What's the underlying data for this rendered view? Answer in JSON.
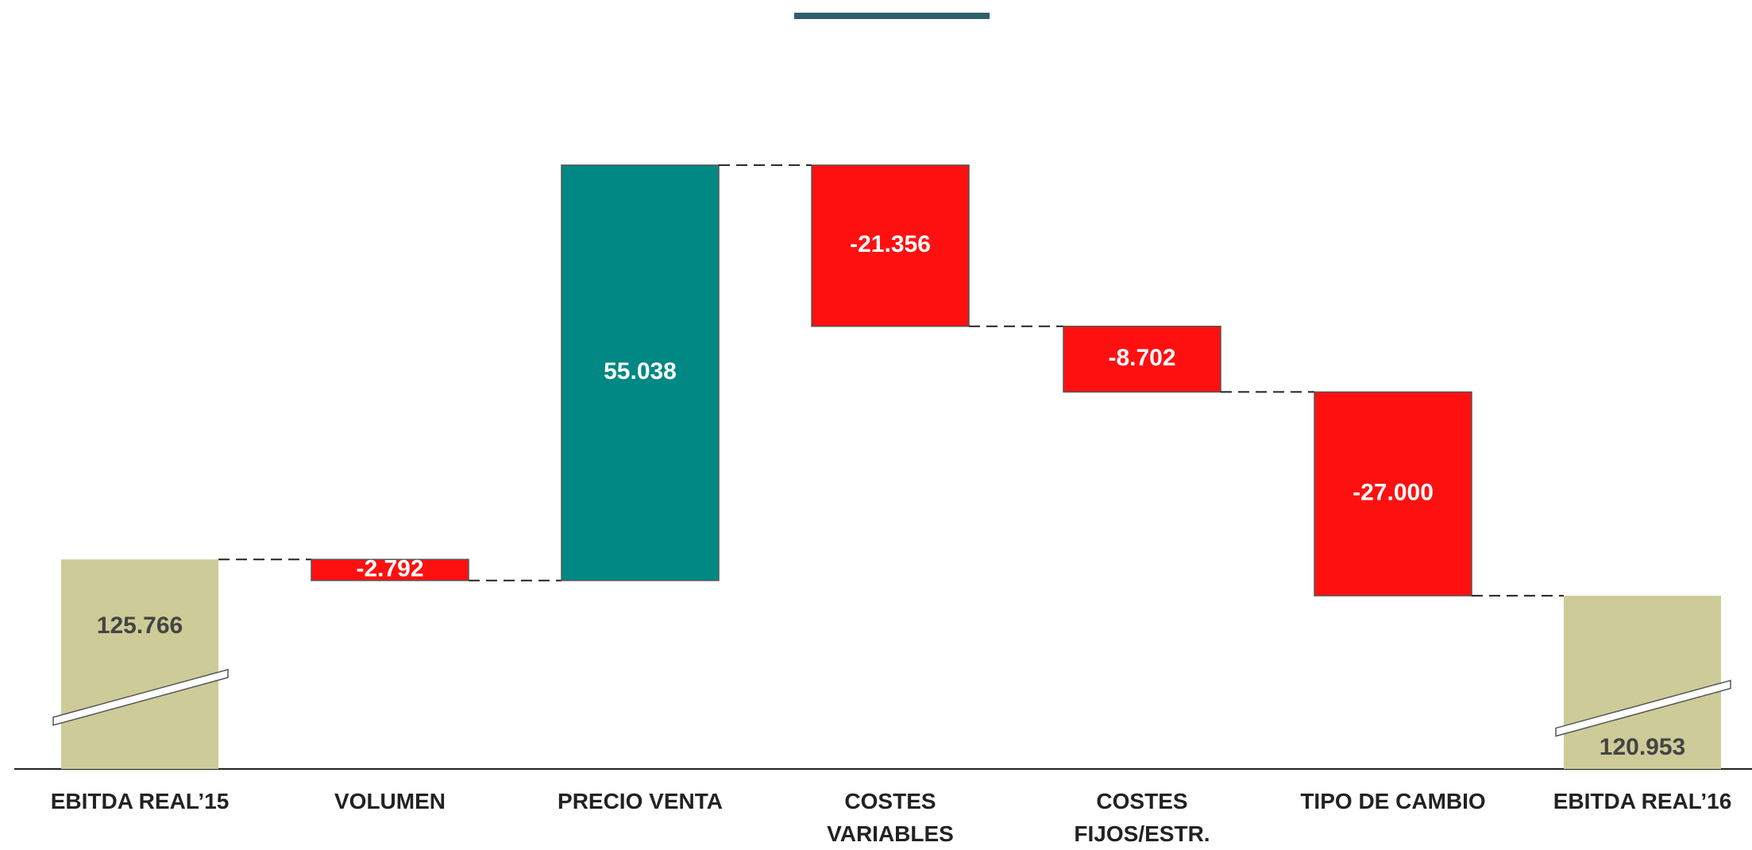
{
  "chart_data": {
    "type": "waterfall",
    "categories": [
      "EBITDA REAL’15",
      "VOLUMEN",
      "PRECIO VENTA",
      "COSTES\nVARIABLES",
      "COSTES\nFIJOS/ESTR.",
      "TIPO DE CAMBIO",
      "EBITDA REAL’16"
    ],
    "values": [
      125766,
      -2792,
      55038,
      -21356,
      -8702,
      -27000,
      120953
    ],
    "value_labels": [
      "125.766",
      "-2.792",
      "55.038",
      "-21.356",
      "-8.702",
      "-27.000",
      "120.953"
    ],
    "colors": {
      "total": "#cdcb98",
      "increase": "#008884",
      "decrease": "#ff1010"
    },
    "ylim": [
      98000,
      200000
    ],
    "axis_break": true
  }
}
